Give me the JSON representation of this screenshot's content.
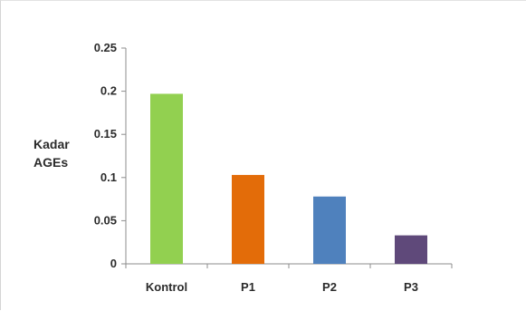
{
  "chart_data": {
    "type": "bar",
    "title": "",
    "xlabel": "",
    "ylabel": "Kadar AGEs",
    "ylabel_lines": [
      "Kadar",
      "AGEs"
    ],
    "categories": [
      "Kontrol",
      "P1",
      "P2",
      "P3"
    ],
    "values": [
      0.197,
      0.103,
      0.078,
      0.033
    ],
    "colors": [
      "#92d050",
      "#e36c09",
      "#4f81bd",
      "#5f497a"
    ],
    "ylim": [
      0,
      0.25
    ],
    "yticks": [
      0,
      0.05,
      0.1,
      0.15,
      0.2,
      0.25
    ],
    "ytick_labels": [
      "0",
      "0.05",
      "0.1",
      "0.15",
      "0.2",
      "0.25"
    ],
    "grid": false,
    "legend": "none"
  }
}
